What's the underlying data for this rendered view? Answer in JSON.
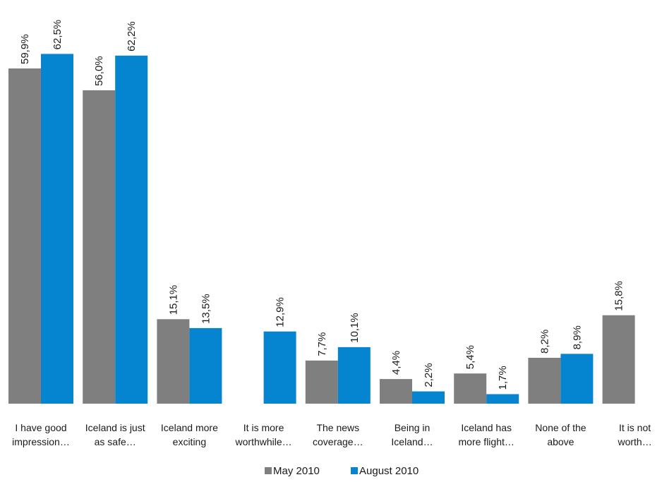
{
  "chart_data": {
    "type": "bar",
    "categories": [
      [
        "I have good",
        "impression…"
      ],
      [
        "Iceland is just",
        "as safe…"
      ],
      [
        "Iceland more",
        "exciting"
      ],
      [
        "It is more",
        "worthwhile…"
      ],
      [
        "The news",
        "coverage…"
      ],
      [
        "Being in",
        "Iceland…"
      ],
      [
        "Iceland has",
        "more flight…"
      ],
      [
        "None of the",
        "above"
      ],
      [
        "It is not",
        "worth…"
      ]
    ],
    "series": [
      {
        "name": "May 2010",
        "color": "#7f7f7f",
        "values": [
          59.9,
          56.0,
          15.1,
          null,
          7.7,
          4.4,
          5.4,
          8.2,
          15.8
        ],
        "labels": [
          "59,9%",
          "56,0%",
          "15,1%",
          "",
          "7,7%",
          "4,4%",
          "5,4%",
          "8,2%",
          "15,8%"
        ]
      },
      {
        "name": "August 2010",
        "color": "#0584d0",
        "values": [
          62.5,
          62.2,
          13.5,
          12.9,
          10.1,
          2.2,
          1.7,
          8.9,
          null
        ],
        "labels": [
          "62,5%",
          "62,2%",
          "13,5%",
          "12,9%",
          "10,1%",
          "2,2%",
          "1,7%",
          "8,9%",
          ""
        ]
      }
    ],
    "ylim": [
      0,
      66
    ],
    "grid": false,
    "legend_position": "bottom"
  }
}
